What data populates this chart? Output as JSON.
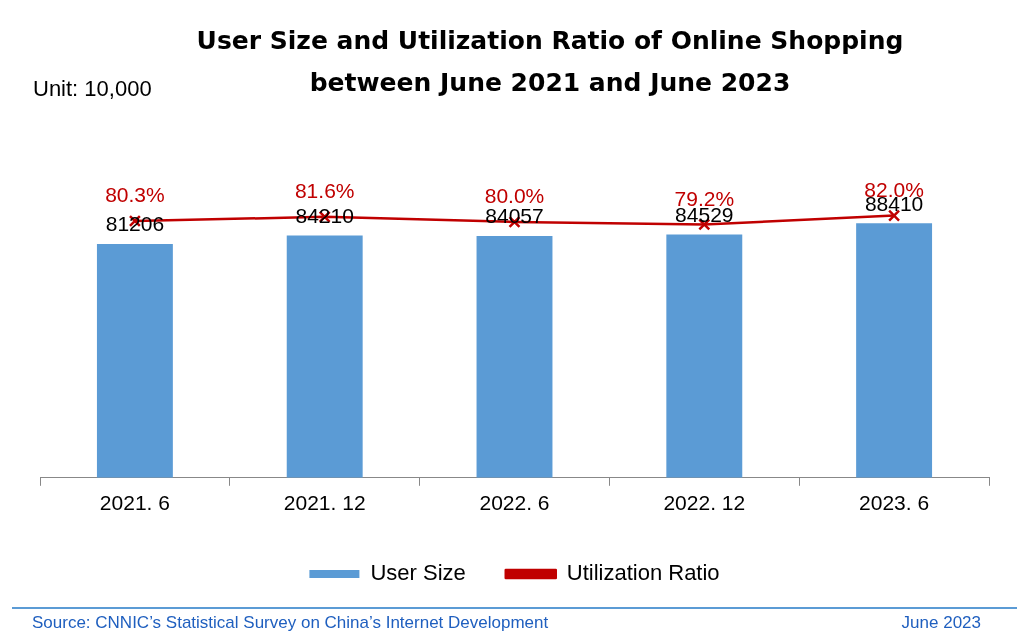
{
  "chart_data": {
    "type": "bar",
    "title": "User Size and Utilization Ratio of Online Shopping between June 2021 and June 2023",
    "categories": [
      "2021. 6",
      "2021. 12",
      "2022. 6",
      "2022. 12",
      "2023. 6"
    ],
    "series": [
      {
        "name": "User Size",
        "color": "#5b9bd5",
        "values": [
          81206,
          84210,
          84057,
          84529,
          88410
        ]
      },
      {
        "name": "Utilization Ratio",
        "type": "line",
        "axis": "y2",
        "color": "#c00000",
        "marker": "cross",
        "values": [
          80.3,
          81.6,
          80.0,
          79.2,
          82.0
        ],
        "value_labels": [
          "80.3%",
          "81.6%",
          "80.0%",
          "79.2%",
          "82.0%"
        ]
      }
    ],
    "data_labels": true,
    "grid": false,
    "legend": "bottom",
    "tick_labels": "x",
    "annotations": [
      "Unit: 10,000",
      "Source: CNNIC’s Statistical Survey on China’s Internet Development",
      "June 2023"
    ]
  }
}
